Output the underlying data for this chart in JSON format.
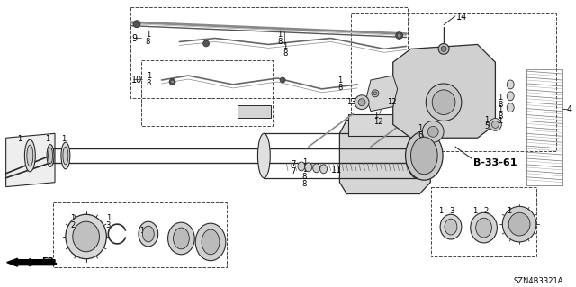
{
  "background_color": "#ffffff",
  "diagram_code": "SZN4B3321A",
  "ref_code": "B-33-61",
  "line_color": "#2a2a2a",
  "light_gray": "#cccccc",
  "mid_gray": "#aaaaaa",
  "dark_gray": "#555555"
}
